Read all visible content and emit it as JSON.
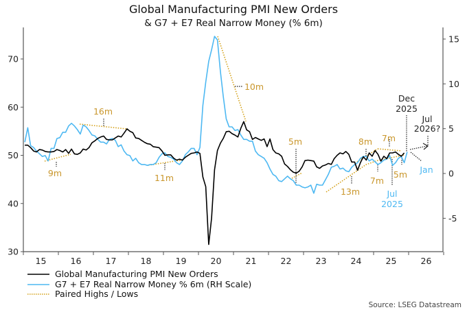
{
  "chart_data": {
    "type": "line",
    "title": "Global Manufacturing PMI New Orders",
    "subtitle": "& G7 + E7 Real Narrow Money (% 6m)",
    "x_tick_labels": [
      "15",
      "16",
      "17",
      "18",
      "19",
      "20",
      "21",
      "22",
      "23",
      "24",
      "25",
      "26"
    ],
    "left_axis": {
      "ylim": [
        30,
        75
      ],
      "ticks": [
        30,
        40,
        50,
        60,
        70
      ]
    },
    "right_axis": {
      "ylim": [
        -8.5,
        15.5
      ],
      "ticks": [
        -5,
        0,
        5,
        10,
        15
      ]
    },
    "grid": false,
    "legend_placement": "bottom-left",
    "colors": {
      "pmi": "#000000",
      "money": "#4db8f2",
      "paired": "#d4a017",
      "annotation_gold": "#c9962b"
    },
    "series": [
      {
        "name": "Global Manufacturing PMI New Orders",
        "axis": "left",
        "start": "2015-01",
        "frequency": "monthly",
        "values": [
          52.1,
          52.1,
          51.6,
          50.9,
          50.7,
          51.2,
          51.1,
          50.8,
          50.7,
          50.7,
          50.8,
          51.2,
          51.0,
          50.7,
          51.2,
          50.4,
          51.3,
          50.3,
          50.2,
          50.5,
          51.3,
          51.1,
          51.6,
          52.6,
          53.0,
          53.5,
          53.8,
          54.0,
          53.3,
          53.2,
          53.2,
          53.6,
          54.0,
          53.8,
          54.6,
          55.5,
          55.0,
          54.7,
          53.6,
          53.5,
          53.1,
          52.7,
          52.4,
          52.3,
          51.8,
          51.7,
          51.6,
          50.9,
          50.0,
          50.1,
          50.1,
          49.4,
          49.0,
          49.2,
          49.0,
          49.6,
          50.0,
          50.4,
          50.5,
          50.7,
          50.4,
          45.5,
          43.5,
          31.5,
          37.0,
          47.0,
          51.0,
          52.5,
          53.5,
          54.9,
          55.0,
          54.5,
          54.2,
          53.8,
          55.6,
          57.0,
          55.3,
          54.9,
          53.3,
          53.7,
          53.4,
          53.1,
          53.4,
          51.8,
          53.4,
          51.2,
          50.5,
          50.3,
          49.8,
          48.2,
          47.7,
          47.0,
          46.5,
          46.3,
          46.7,
          47.6,
          48.9,
          49.0,
          48.9,
          48.8,
          47.6,
          47.3,
          47.8,
          48.0,
          48.3,
          48.1,
          49.3,
          50.0,
          50.5,
          50.3,
          50.8,
          50.2,
          48.6,
          48.6,
          46.9,
          48.5,
          49.7,
          49.0,
          50.5,
          49.8,
          51.0,
          50.2,
          48.8,
          49.8,
          49.3,
          50.5,
          50.5,
          50.7,
          50.2,
          49.8,
          50.5
        ]
      },
      {
        "name": "G7 + E7 Real Narrow Money % 6m (RH Scale)",
        "axis": "right",
        "start": "2015-01",
        "frequency": "monthly",
        "values": [
          3.5,
          5.1,
          3.1,
          2.9,
          2.5,
          2.2,
          1.9,
          2.0,
          1.4,
          2.8,
          2.8,
          3.9,
          4.0,
          4.6,
          4.6,
          5.3,
          5.6,
          5.3,
          4.9,
          4.4,
          5.4,
          5.2,
          4.8,
          4.3,
          4.2,
          3.8,
          3.5,
          3.5,
          3.3,
          3.8,
          3.9,
          3.7,
          3.0,
          3.2,
          2.5,
          2.1,
          2.0,
          1.4,
          1.7,
          1.2,
          1.0,
          1.0,
          0.9,
          1.0,
          1.0,
          1.2,
          1.8,
          2.2,
          2.3,
          1.9,
          1.8,
          1.6,
          1.2,
          1.0,
          1.4,
          2.1,
          2.4,
          2.8,
          2.8,
          2.1,
          2.9,
          7.6,
          10.2,
          12.5,
          13.8,
          15.3,
          14.9,
          11.4,
          8.6,
          6.1,
          5.2,
          5.2,
          4.8,
          4.9,
          4.3,
          3.8,
          3.8,
          3.6,
          3.6,
          2.5,
          2.1,
          1.9,
          1.7,
          1.2,
          0.5,
          -0.1,
          -0.3,
          -0.8,
          -0.9,
          -0.6,
          -0.3,
          -0.6,
          -0.8,
          -1.3,
          -1.3,
          -1.5,
          -1.6,
          -1.5,
          -1.3,
          -2.2,
          -1.2,
          -1.3,
          -1.3,
          -0.7,
          -0.1,
          0.7,
          0.8,
          1.0,
          0.5,
          0.6,
          0.3,
          0.2,
          0.7,
          1.0,
          1.2,
          1.7,
          1.9,
          1.9,
          1.4,
          1.6,
          1.3,
          1.0,
          1.2,
          1.5,
          1.6,
          2.0,
          0.9,
          1.2,
          1.7,
          1.9,
          1.2,
          2.4
        ]
      },
      {
        "name": "Paired Highs / Lows"
      }
    ],
    "annotations": {
      "m9": "9m",
      "m16": "16m",
      "m11": "11m",
      "m10": "10m",
      "m5a": "5m",
      "m13": "13m",
      "m8": "8m",
      "m7a": "7m",
      "m7b": "7m",
      "m5b": "5m",
      "jul2025_1": "Jul",
      "jul2025_2": "2025",
      "dec2025_1": "Dec",
      "dec2025_2": "2025",
      "jul2026_1": "Jul",
      "jul2026_2": "2026?",
      "jan": "Jan"
    }
  },
  "source": "Source: LSEG Datastream"
}
